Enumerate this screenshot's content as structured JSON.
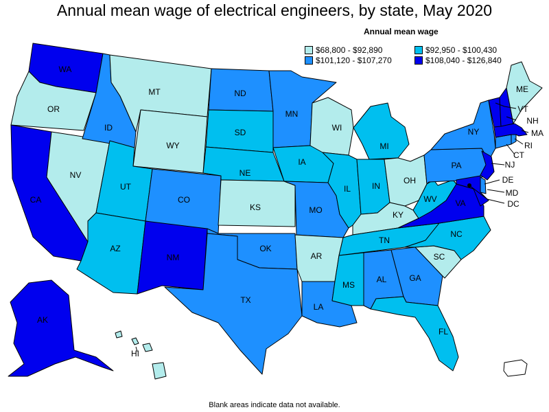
{
  "title": "Annual mean wage of electrical engineers, by state, May 2020",
  "legend": {
    "title": "Annual mean wage",
    "items": [
      {
        "label": "$68,800 - $92,890",
        "color": "#b3ecec"
      },
      {
        "label": "$92,950 - $100,430",
        "color": "#00bfef"
      },
      {
        "label": "$101,120 - $107,270",
        "color": "#1e90ff"
      },
      {
        "label": "$108,040 - $126,840",
        "color": "#0000ee"
      }
    ]
  },
  "note": "Blank areas indicate data not available.",
  "colors": {
    "c1": "#b3ecec",
    "c2": "#00bfef",
    "c3": "#1e90ff",
    "c4": "#0000ee",
    "blank": "#ffffff"
  },
  "states": {
    "WA": {
      "label": "WA",
      "tier": 4
    },
    "OR": {
      "label": "OR",
      "tier": 1
    },
    "CA": {
      "label": "CA",
      "tier": 4
    },
    "NV": {
      "label": "NV",
      "tier": 1
    },
    "ID": {
      "label": "ID",
      "tier": 3
    },
    "MT": {
      "label": "MT",
      "tier": 1
    },
    "WY": {
      "label": "WY",
      "tier": 1
    },
    "UT": {
      "label": "UT",
      "tier": 2
    },
    "AZ": {
      "label": "AZ",
      "tier": 2
    },
    "CO": {
      "label": "CO",
      "tier": 3
    },
    "NM": {
      "label": "NM",
      "tier": 4
    },
    "ND": {
      "label": "ND",
      "tier": 3
    },
    "SD": {
      "label": "SD",
      "tier": 2
    },
    "NE": {
      "label": "NE",
      "tier": 2
    },
    "KS": {
      "label": "KS",
      "tier": 1
    },
    "OK": {
      "label": "OK",
      "tier": 3
    },
    "TX": {
      "label": "TX",
      "tier": 3
    },
    "MN": {
      "label": "MN",
      "tier": 3
    },
    "IA": {
      "label": "IA",
      "tier": 2
    },
    "MO": {
      "label": "MO",
      "tier": 3
    },
    "AR": {
      "label": "AR",
      "tier": 1
    },
    "LA": {
      "label": "LA",
      "tier": 3
    },
    "WI": {
      "label": "WI",
      "tier": 1
    },
    "IL": {
      "label": "IL",
      "tier": 2
    },
    "MI": {
      "label": "MI",
      "tier": 2
    },
    "IN": {
      "label": "IN",
      "tier": 2
    },
    "OH": {
      "label": "OH",
      "tier": 1
    },
    "KY": {
      "label": "KY",
      "tier": 1
    },
    "TN": {
      "label": "TN",
      "tier": 2
    },
    "MS": {
      "label": "MS",
      "tier": 2
    },
    "AL": {
      "label": "AL",
      "tier": 3
    },
    "GA": {
      "label": "GA",
      "tier": 3
    },
    "FL": {
      "label": "FL",
      "tier": 2
    },
    "SC": {
      "label": "SC",
      "tier": 1
    },
    "NC": {
      "label": "NC",
      "tier": 2
    },
    "VA": {
      "label": "VA",
      "tier": 4
    },
    "WV": {
      "label": "WV",
      "tier": 2
    },
    "PA": {
      "label": "PA",
      "tier": 3
    },
    "NY": {
      "label": "NY",
      "tier": 3
    },
    "VT": {
      "label": "VT",
      "tier": 4
    },
    "NH": {
      "label": "NH",
      "tier": 4
    },
    "ME": {
      "label": "ME",
      "tier": 1
    },
    "MA": {
      "label": "MA",
      "tier": 4
    },
    "RI": {
      "label": "RI",
      "tier": 3
    },
    "CT": {
      "label": "CT",
      "tier": 3
    },
    "NJ": {
      "label": "NJ",
      "tier": 4
    },
    "DE": {
      "label": "DE",
      "tier": 3
    },
    "MD": {
      "label": "MD",
      "tier": 4
    },
    "DC": {
      "label": "DC",
      "tier": 4
    },
    "AK": {
      "label": "AK",
      "tier": 4
    },
    "HI": {
      "label": "HI",
      "tier": 1
    },
    "PR": {
      "label": "",
      "tier": 0
    }
  }
}
